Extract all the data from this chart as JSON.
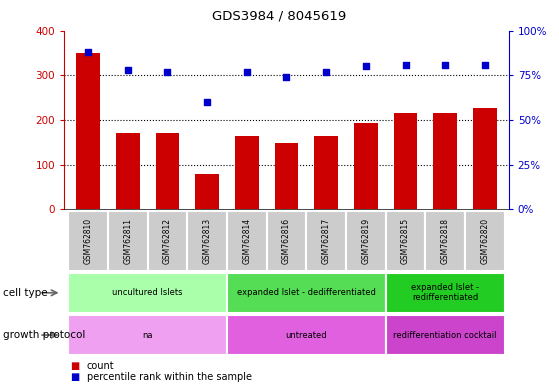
{
  "title": "GDS3984 / 8045619",
  "samples": [
    "GSM762810",
    "GSM762811",
    "GSM762812",
    "GSM762813",
    "GSM762814",
    "GSM762816",
    "GSM762817",
    "GSM762819",
    "GSM762815",
    "GSM762818",
    "GSM762820"
  ],
  "counts": [
    350,
    170,
    170,
    78,
    165,
    148,
    165,
    193,
    215,
    215,
    228
  ],
  "percentile_ranks": [
    88,
    78,
    77,
    60,
    77,
    74,
    77,
    80,
    81,
    81,
    81
  ],
  "bar_color": "#cc0000",
  "dot_color": "#0000cc",
  "ylim_left": [
    0,
    400
  ],
  "ylim_right": [
    0,
    100
  ],
  "yticks_left": [
    0,
    100,
    200,
    300,
    400
  ],
  "yticks_right": [
    0,
    25,
    50,
    75,
    100
  ],
  "yticklabels_right": [
    "0%",
    "25%",
    "50%",
    "75%",
    "100%"
  ],
  "cell_type_groups": [
    {
      "label": "uncultured Islets",
      "start": 0,
      "end": 3,
      "color": "#aaffaa"
    },
    {
      "label": "expanded Islet - dedifferentiated",
      "start": 4,
      "end": 7,
      "color": "#55dd55"
    },
    {
      "label": "expanded Islet -\nredifferentiated",
      "start": 8,
      "end": 10,
      "color": "#22cc22"
    }
  ],
  "growth_protocol_groups": [
    {
      "label": "na",
      "start": 0,
      "end": 3,
      "color": "#f0a0f0"
    },
    {
      "label": "untreated",
      "start": 4,
      "end": 7,
      "color": "#e060e0"
    },
    {
      "label": "redifferentiation cocktail",
      "start": 8,
      "end": 10,
      "color": "#cc44cc"
    }
  ],
  "xtick_bg": "#cccccc",
  "xtick_divider": "#ffffff",
  "background_color": "#ffffff",
  "grid_color": "#000000",
  "left_spine_color": "#cc0000",
  "right_spine_color": "#0000cc"
}
